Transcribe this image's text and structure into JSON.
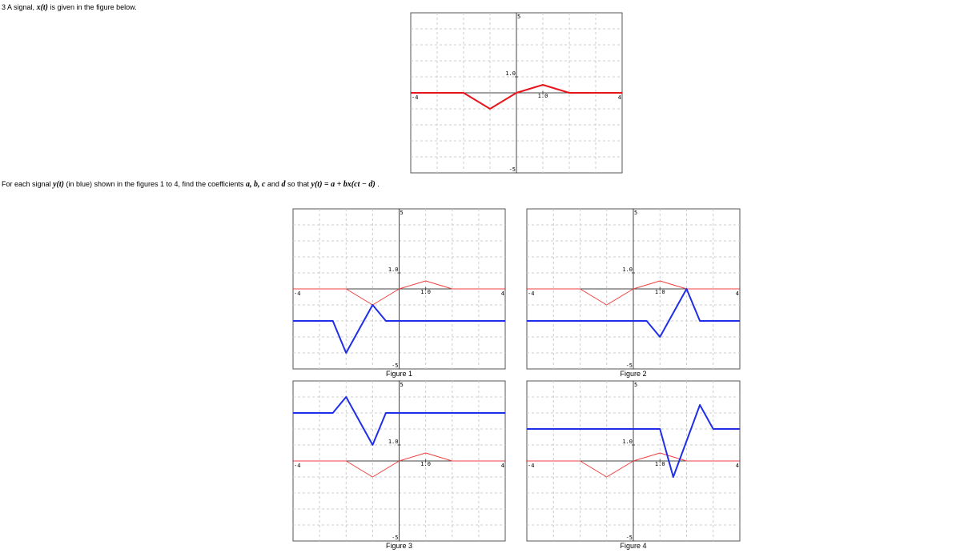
{
  "intro": [
    {
      "text": "3 A signal,"
    },
    {
      "text": "x(t)",
      "math": true
    },
    {
      "text": "is given in the figure below."
    }
  ],
  "question": [
    {
      "text": "For each signal"
    },
    {
      "text": "y(t)",
      "math": true
    },
    {
      "text": "(in blue) shown in the figures 1 to 4, find the coefficients"
    },
    {
      "text": "a, b, c",
      "math": true
    },
    {
      "text": "and"
    },
    {
      "text": "d",
      "math": true
    },
    {
      "text": "so that"
    },
    {
      "text": "y(t) = a + bx(ct − d)",
      "math": true
    },
    {
      "text": "."
    }
  ],
  "plots": [
    {
      "xlim": [
        -4,
        4
      ],
      "ylim": [
        -5,
        5
      ],
      "xticks": [
        -4,
        {
          "value": 1,
          "label": "1.0"
        },
        4
      ],
      "yticks": [
        -5,
        {
          "value": 1,
          "label": "1.0"
        },
        5
      ],
      "series": [
        {
          "color": "#e8141c",
          "width": 2,
          "x": [
            -4,
            -2,
            -1,
            0,
            1,
            2,
            4
          ],
          "values": [
            0,
            0,
            -1,
            0,
            0.5,
            0,
            0
          ]
        }
      ]
    },
    {
      "caption": "Figure 1",
      "xlim": [
        -4,
        4
      ],
      "ylim": [
        -5,
        5
      ],
      "xticks": [
        -4,
        {
          "value": 1,
          "label": "1.0"
        },
        4
      ],
      "yticks": [
        -5,
        {
          "value": 1,
          "label": "1.0"
        },
        5
      ],
      "series": [
        {
          "color": "#f04040",
          "width": 1,
          "x": [
            -4,
            -2,
            -1,
            0,
            1,
            2,
            4
          ],
          "values": [
            0,
            0,
            -1,
            0,
            0.5,
            0,
            0
          ]
        },
        {
          "color": "#1f2ee8",
          "width": 2,
          "x": [
            -4,
            -2.5,
            -2,
            -1,
            -0.5,
            4
          ],
          "values": [
            -2,
            -2,
            -4,
            -1,
            -2,
            -2
          ]
        }
      ]
    },
    {
      "caption": "Figure 2",
      "xlim": [
        -4,
        4
      ],
      "ylim": [
        -5,
        5
      ],
      "xticks": [
        -4,
        {
          "value": 1,
          "label": "1.0"
        },
        4
      ],
      "yticks": [
        -5,
        {
          "value": 1,
          "label": "1.0"
        },
        5
      ],
      "series": [
        {
          "color": "#f04040",
          "width": 1,
          "x": [
            -4,
            -2,
            -1,
            0,
            1,
            2,
            4
          ],
          "values": [
            0,
            0,
            -1,
            0,
            0.5,
            0,
            0
          ]
        },
        {
          "color": "#1f2ee8",
          "width": 2,
          "x": [
            -4,
            0.5,
            1,
            2,
            2.5,
            4
          ],
          "values": [
            -2,
            -2,
            -3,
            0,
            -2,
            -2
          ]
        }
      ]
    },
    {
      "caption": "Figure 3",
      "xlim": [
        -4,
        4
      ],
      "ylim": [
        -5,
        5
      ],
      "xticks": [
        -4,
        {
          "value": 1,
          "label": "1.0"
        },
        4
      ],
      "yticks": [
        -5,
        {
          "value": 1,
          "label": "1.0"
        },
        5
      ],
      "series": [
        {
          "color": "#f04040",
          "width": 1,
          "x": [
            -4,
            -2,
            -1,
            0,
            1,
            2,
            4
          ],
          "values": [
            0,
            0,
            -1,
            0,
            0.5,
            0,
            0
          ]
        },
        {
          "color": "#1f2ee8",
          "width": 2,
          "x": [
            -4,
            -2.5,
            -2,
            -1,
            -0.5,
            4
          ],
          "values": [
            3,
            3,
            4,
            1,
            3,
            3
          ]
        }
      ]
    },
    {
      "caption": "Figure 4",
      "xlim": [
        -4,
        4
      ],
      "ylim": [
        -5,
        5
      ],
      "xticks": [
        -4,
        {
          "value": 1,
          "label": "1.0"
        },
        4
      ],
      "yticks": [
        -5,
        {
          "value": 1,
          "label": "1.0"
        },
        5
      ],
      "series": [
        {
          "color": "#f04040",
          "width": 1,
          "x": [
            -4,
            -2,
            -1,
            0,
            1,
            2,
            4
          ],
          "values": [
            0,
            0,
            -1,
            0,
            0.5,
            0,
            0
          ]
        },
        {
          "color": "#1f2ee8",
          "width": 2,
          "x": [
            -4,
            1,
            1.5,
            2.5,
            3,
            4
          ],
          "values": [
            2,
            2,
            -1,
            3.5,
            2,
            2
          ]
        }
      ]
    }
  ]
}
